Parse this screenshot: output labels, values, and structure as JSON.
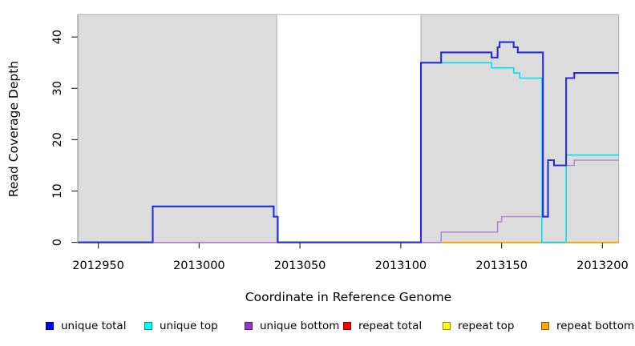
{
  "figure_title": "",
  "chart_data": {
    "type": "line",
    "subtype": "step",
    "title": "",
    "xlabel": "Coordinate in Reference Genome",
    "ylabel": "Read Coverage Depth",
    "xlim": [
      2012940,
      2013208
    ],
    "ylim": [
      0,
      44
    ],
    "x_ticks": [
      2012950,
      2013000,
      2013050,
      2013100,
      2013150,
      2013200
    ],
    "x_tick_labels": [
      "2012950",
      "2013000",
      "2013050",
      "2013100",
      "2013150",
      "2013200"
    ],
    "y_ticks": [
      0,
      10,
      20,
      30,
      40
    ],
    "y_tick_labels": [
      "0",
      "10",
      "20",
      "30",
      "40"
    ],
    "grid": false,
    "legend_position": "bottom",
    "background_shading": {
      "color": "#DCDCDC",
      "border_color": "#ADADAD",
      "regions": [
        [
          2012940,
          2013038.5
        ],
        [
          2013110,
          2013208
        ]
      ]
    },
    "series": [
      {
        "name": "unique total",
        "color": "#2B2BD5",
        "legend_color": "#0000EE",
        "width": 2.1,
        "points": [
          [
            2012940,
            0
          ],
          [
            2012977,
            7
          ],
          [
            2013037,
            5
          ],
          [
            2013039,
            0
          ],
          [
            2013110,
            35
          ],
          [
            2013120,
            37
          ],
          [
            2013145,
            36
          ],
          [
            2013148,
            38
          ],
          [
            2013149,
            39
          ],
          [
            2013156,
            38
          ],
          [
            2013158,
            37
          ],
          [
            2013170.5,
            5
          ],
          [
            2013173,
            16
          ],
          [
            2013176,
            15
          ],
          [
            2013182,
            32
          ],
          [
            2013186,
            33
          ],
          [
            2013208,
            33
          ]
        ]
      },
      {
        "name": "unique top",
        "color": "#00E0EE",
        "legend_color": "#00FFFF",
        "width": 1.6,
        "points": [
          [
            2012940,
            0
          ],
          [
            2012977,
            7
          ],
          [
            2013037,
            5
          ],
          [
            2013039,
            0
          ],
          [
            2013110,
            35
          ],
          [
            2013145,
            34
          ],
          [
            2013156,
            33
          ],
          [
            2013159,
            32
          ],
          [
            2013170,
            0
          ],
          [
            2013182,
            17
          ],
          [
            2013208,
            17
          ]
        ]
      },
      {
        "name": "unique bottom",
        "color": "#B287DE",
        "legend_color": "#9932CC",
        "width": 1.6,
        "points": [
          [
            2012940,
            0
          ],
          [
            2013120,
            2
          ],
          [
            2013148,
            4
          ],
          [
            2013150,
            5
          ],
          [
            2013173,
            16
          ],
          [
            2013176,
            15
          ],
          [
            2013186,
            16
          ],
          [
            2013208,
            16
          ]
        ]
      },
      {
        "name": "repeat total",
        "color": "#EE5566",
        "legend_color": "#FF0000",
        "width": 1.2,
        "points": [
          [
            2012977,
            0
          ],
          [
            2013120,
            0
          ]
        ]
      },
      {
        "name": "repeat top",
        "color": "#FFFF00",
        "legend_color": "#FFFF00",
        "width": 1.5,
        "points": [
          [
            2013120,
            0
          ],
          [
            2013208,
            0
          ]
        ]
      },
      {
        "name": "repeat bottom",
        "color": "#FFA500",
        "legend_color": "#FFA500",
        "width": 1.8,
        "points": [
          [
            2013120,
            0
          ],
          [
            2013208,
            0
          ]
        ]
      }
    ],
    "draw_order": [
      "repeat total",
      "repeat top",
      "repeat bottom",
      "unique bottom",
      "unique top",
      "unique total"
    ],
    "legend_labels": [
      "unique total",
      "unique top",
      "unique bottom",
      "repeat total",
      "repeat top",
      "repeat bottom"
    ]
  }
}
